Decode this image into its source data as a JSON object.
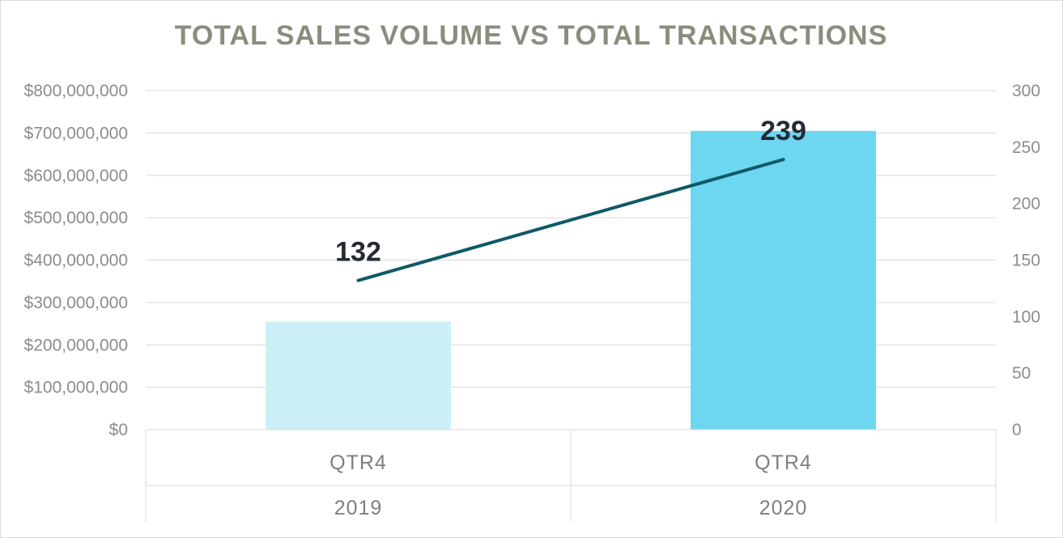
{
  "chart_data": {
    "type": "bar",
    "title": "TOTAL SALES VOLUME VS TOTAL TRANSACTIONS",
    "categories": [
      {
        "quarter": "QTR4",
        "year": "2019"
      },
      {
        "quarter": "QTR4",
        "year": "2020"
      }
    ],
    "series": [
      {
        "type": "bar",
        "axis": "left",
        "values": [
          255000000,
          705000000
        ],
        "colors": [
          "#cdf0f8",
          "#6dd6f0"
        ]
      },
      {
        "type": "line",
        "axis": "right",
        "values": [
          132,
          239
        ],
        "color": "#0e5a66",
        "data_labels": [
          "132",
          "239"
        ]
      }
    ],
    "y_axis": {
      "min": 0,
      "max": 800000000,
      "step": 100000000,
      "tick_labels": [
        "$0",
        "$100,000,000",
        "$200,000,000",
        "$300,000,000",
        "$400,000,000",
        "$500,000,000",
        "$600,000,000",
        "$700,000,000",
        "$800,000,000"
      ]
    },
    "y2_axis": {
      "min": 0,
      "max": 300,
      "step": 50,
      "tick_labels": [
        "0",
        "50",
        "100",
        "150",
        "200",
        "250",
        "300"
      ]
    },
    "grid": true,
    "legend": "none"
  }
}
